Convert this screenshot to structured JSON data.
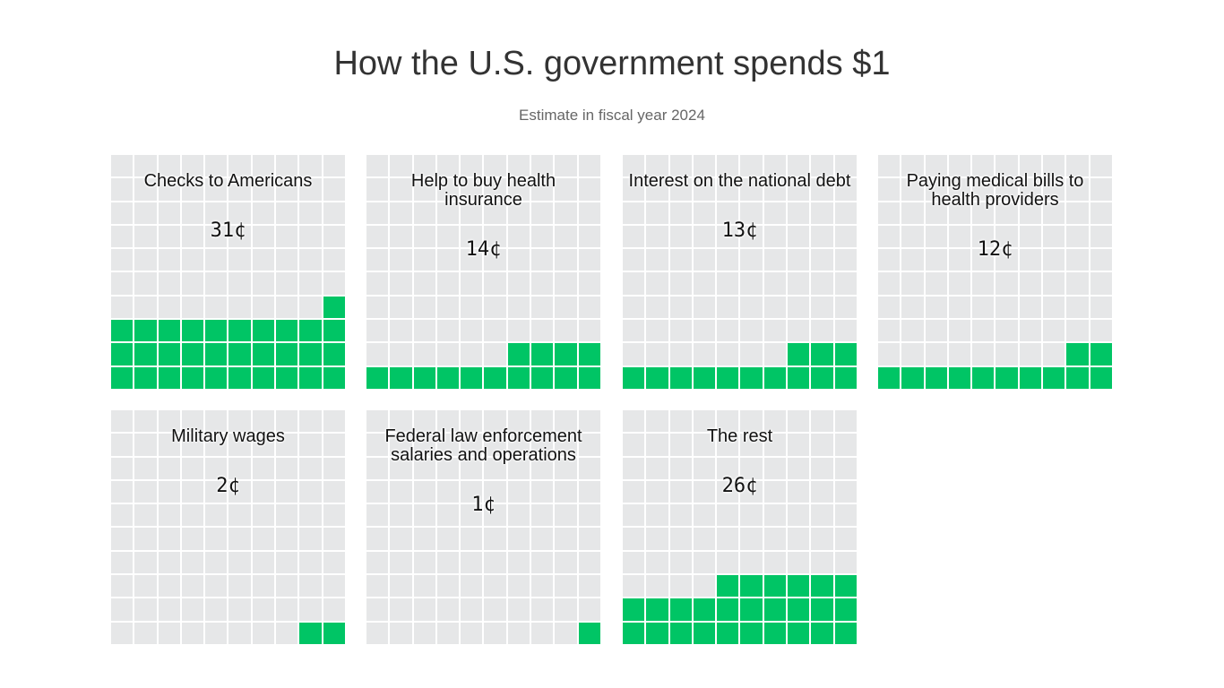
{
  "chart_data": {
    "type": "waffle",
    "title": "How the U.S. government spends $1",
    "subtitle": "Estimate in fiscal year 2024",
    "grid": "10x10",
    "colors": {
      "filled": "#00c565",
      "empty": "#e6e7e8"
    },
    "panels": [
      {
        "label": "Checks to Americans",
        "value": 31,
        "value_label": "31¢"
      },
      {
        "label": "Help to buy health insurance",
        "value": 14,
        "value_label": "14¢"
      },
      {
        "label": "Interest on the national debt",
        "value": 13,
        "value_label": "13¢"
      },
      {
        "label": "Paying medical bills to health providers",
        "value": 12,
        "value_label": "12¢"
      },
      {
        "label": "Military wages",
        "value": 2,
        "value_label": "2¢"
      },
      {
        "label": "Federal law enforcement salaries and operations",
        "value": 1,
        "value_label": "1¢"
      },
      {
        "label": "The rest",
        "value": 26,
        "value_label": "26¢"
      }
    ]
  }
}
